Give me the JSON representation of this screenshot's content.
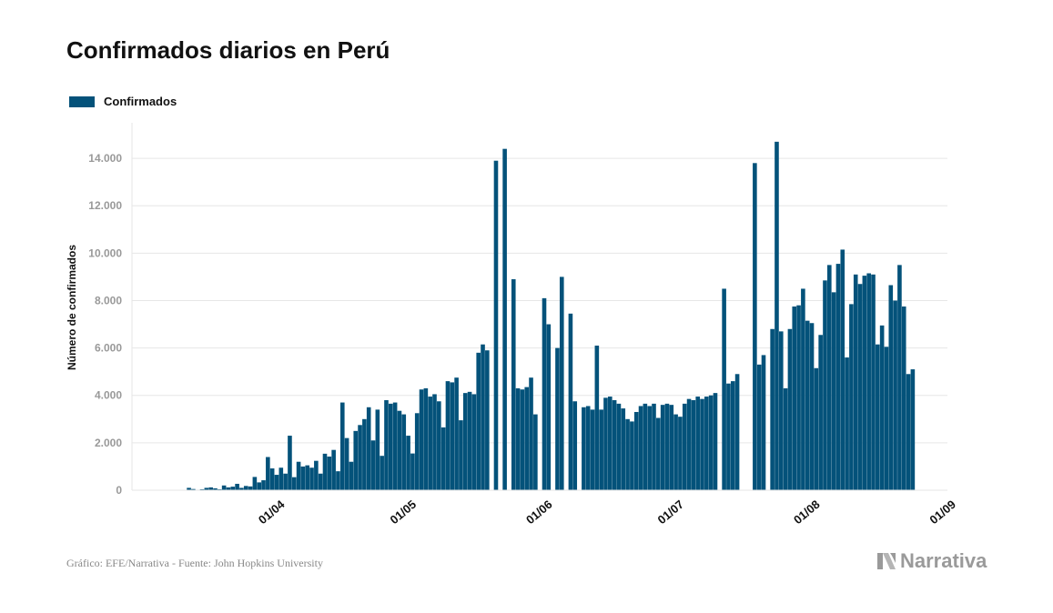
{
  "title": "Confirmados diarios en Perú",
  "footer": {
    "source": "Gráfico: EFE/Narrativa - Fuente: John Hopkins University",
    "brand": "Narrativa"
  },
  "colors": {
    "bar": "#04527a",
    "grid": "#e6e6e6",
    "tick_text": "#999999",
    "axis_title": "#111111"
  },
  "chart_data": {
    "type": "bar",
    "legend": [
      "Confirmados"
    ],
    "legend_position": "top-left",
    "ylabel": "Número de confirmados",
    "xlabel": "",
    "ylim": [
      0,
      15500
    ],
    "yticks": [
      0,
      2000,
      4000,
      6000,
      8000,
      10000,
      12000,
      14000
    ],
    "ytick_labels": [
      "0",
      "2.000",
      "4.000",
      "6.000",
      "8.000",
      "10.000",
      "12.000",
      "14.000"
    ],
    "grid": true,
    "x_start_date": "2020-03-06",
    "xticks": [
      {
        "date": "2020-04-01",
        "label": "01/04"
      },
      {
        "date": "2020-05-01",
        "label": "01/05"
      },
      {
        "date": "2020-06-01",
        "label": "01/06"
      },
      {
        "date": "2020-07-01",
        "label": "01/07"
      },
      {
        "date": "2020-08-01",
        "label": "01/08"
      },
      {
        "date": "2020-09-01",
        "label": "01/09"
      }
    ],
    "series": [
      {
        "name": "Confirmados",
        "values": [
          0,
          0,
          0,
          0,
          100,
          50,
          20,
          40,
          100,
          120,
          80,
          40,
          200,
          120,
          150,
          270,
          100,
          180,
          160,
          560,
          330,
          420,
          1400,
          920,
          650,
          950,
          700,
          2300,
          550,
          1200,
          1000,
          1050,
          950,
          1240,
          700,
          1540,
          1420,
          1700,
          800,
          3700,
          2200,
          1200,
          2500,
          2750,
          3000,
          3500,
          2100,
          3400,
          1450,
          3800,
          3650,
          3700,
          3350,
          3200,
          2300,
          1550,
          3250,
          4250,
          4300,
          3950,
          4050,
          3750,
          2650,
          4600,
          4550,
          4750,
          2950,
          4100,
          4150,
          4050,
          5800,
          6150,
          5900,
          0,
          13900,
          0,
          14400,
          0,
          8900,
          4300,
          4250,
          4350,
          4750,
          3200,
          0,
          8100,
          7000,
          0,
          6000,
          9000,
          0,
          7450,
          3750,
          0,
          3500,
          3550,
          3400,
          6100,
          3400,
          3900,
          3950,
          3800,
          3650,
          3450,
          3000,
          2900,
          3300,
          3550,
          3650,
          3550,
          3650,
          3050,
          3600,
          3650,
          3600,
          3200,
          3100,
          3650,
          3850,
          3800,
          3950,
          3850,
          3950,
          4000,
          4100,
          0,
          8500,
          4500,
          4600,
          4900,
          0,
          0,
          0,
          13800,
          5300,
          5700,
          0,
          6800,
          14700,
          6700,
          4300,
          6800,
          7750,
          7800,
          8500,
          7150,
          7050,
          5150,
          6550,
          8850,
          9500,
          8350,
          9550,
          10150,
          5600,
          7850,
          9100,
          8700,
          9050,
          9150,
          9100,
          6150,
          6950,
          6050,
          8650,
          8000,
          9500,
          7750,
          4900,
          5100
        ]
      }
    ]
  }
}
